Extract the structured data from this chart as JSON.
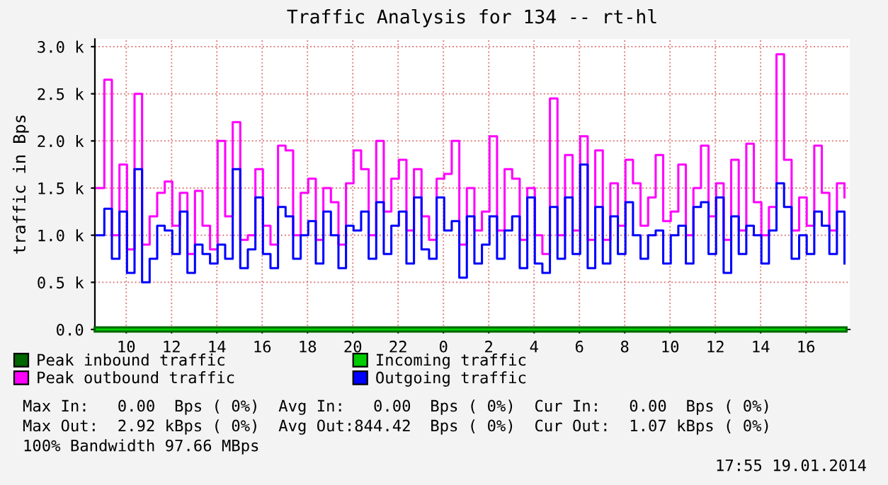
{
  "chart_data": {
    "type": "step",
    "title": "Traffic Analysis for 134 -- rt-hl",
    "ylabel": "traffic in Bps",
    "x": [
      "2014-01-18T08:42",
      "2014-01-18T09:02",
      "2014-01-18T09:22",
      "2014-01-18T09:42",
      "2014-01-18T10:02",
      "2014-01-18T10:22",
      "2014-01-18T10:42",
      "2014-01-18T11:02",
      "2014-01-18T11:22",
      "2014-01-18T11:42",
      "2014-01-18T12:02",
      "2014-01-18T12:22",
      "2014-01-18T12:42",
      "2014-01-18T13:02",
      "2014-01-18T13:22",
      "2014-01-18T13:42",
      "2014-01-18T14:02",
      "2014-01-18T14:22",
      "2014-01-18T14:42",
      "2014-01-18T15:02",
      "2014-01-18T15:22",
      "2014-01-18T15:42",
      "2014-01-18T16:02",
      "2014-01-18T16:22",
      "2014-01-18T16:42",
      "2014-01-18T17:02",
      "2014-01-18T17:22",
      "2014-01-18T17:42",
      "2014-01-18T18:02",
      "2014-01-18T18:22",
      "2014-01-18T18:42",
      "2014-01-18T19:02",
      "2014-01-18T19:22",
      "2014-01-18T19:42",
      "2014-01-18T20:02",
      "2014-01-18T20:22",
      "2014-01-18T20:42",
      "2014-01-18T21:02",
      "2014-01-18T21:22",
      "2014-01-18T21:42",
      "2014-01-18T22:02",
      "2014-01-18T22:22",
      "2014-01-18T22:42",
      "2014-01-18T23:02",
      "2014-01-18T23:22",
      "2014-01-18T23:42",
      "2014-01-19T00:02",
      "2014-01-19T00:22",
      "2014-01-19T00:42",
      "2014-01-19T01:02",
      "2014-01-19T01:22",
      "2014-01-19T01:42",
      "2014-01-19T02:02",
      "2014-01-19T02:22",
      "2014-01-19T02:42",
      "2014-01-19T03:02",
      "2014-01-19T03:22",
      "2014-01-19T03:42",
      "2014-01-19T04:02",
      "2014-01-19T04:22",
      "2014-01-19T04:42",
      "2014-01-19T05:02",
      "2014-01-19T05:22",
      "2014-01-19T05:42",
      "2014-01-19T06:02",
      "2014-01-19T06:22",
      "2014-01-19T06:42",
      "2014-01-19T07:02",
      "2014-01-19T07:22",
      "2014-01-19T07:42",
      "2014-01-19T08:02",
      "2014-01-19T08:22",
      "2014-01-19T08:42",
      "2014-01-19T09:02",
      "2014-01-19T09:22",
      "2014-01-19T09:42",
      "2014-01-19T10:02",
      "2014-01-19T10:22",
      "2014-01-19T10:42",
      "2014-01-19T11:02",
      "2014-01-19T11:22",
      "2014-01-19T11:42",
      "2014-01-19T12:02",
      "2014-01-19T12:22",
      "2014-01-19T12:42",
      "2014-01-19T13:02",
      "2014-01-19T13:22",
      "2014-01-19T13:42",
      "2014-01-19T14:02",
      "2014-01-19T14:22",
      "2014-01-19T14:42",
      "2014-01-19T15:02",
      "2014-01-19T15:22",
      "2014-01-19T15:42",
      "2014-01-19T16:02",
      "2014-01-19T16:22",
      "2014-01-19T16:42",
      "2014-01-19T17:02",
      "2014-01-19T17:22",
      "2014-01-19T17:42"
    ],
    "series": [
      {
        "name": "Peak inbound traffic",
        "color": "#006600",
        "type": "line",
        "x": [
          "2014-01-18T08:42",
          "2014-01-19T17:42"
        ],
        "values": [
          0,
          0
        ]
      },
      {
        "name": "Incoming traffic",
        "color": "#00cc00",
        "type": "line",
        "x": [
          "2014-01-18T08:42",
          "2014-01-19T17:42"
        ],
        "values": [
          0,
          0
        ]
      },
      {
        "name": "Peak outbound traffic",
        "color": "#ff00ff",
        "values": [
          1500,
          2650,
          1000,
          1750,
          850,
          2500,
          900,
          1200,
          1450,
          1570,
          1100,
          1450,
          800,
          1470,
          1100,
          850,
          2000,
          1200,
          2200,
          950,
          1000,
          1700,
          1100,
          900,
          1950,
          1900,
          1000,
          1450,
          1600,
          950,
          1500,
          1350,
          900,
          1550,
          1900,
          1700,
          1000,
          2000,
          1250,
          1600,
          1800,
          1050,
          1700,
          1200,
          950,
          1600,
          1650,
          2000,
          900,
          1500,
          1050,
          1250,
          2050,
          1050,
          1700,
          1600,
          950,
          1500,
          1000,
          800,
          2450,
          1000,
          1850,
          1050,
          2050,
          950,
          1900,
          950,
          1550,
          1100,
          1800,
          1550,
          1100,
          1400,
          1850,
          1150,
          1250,
          1750,
          1000,
          1500,
          1950,
          1200,
          1550,
          950,
          1800,
          1050,
          1970,
          1350,
          1000,
          1300,
          2920,
          1800,
          1050,
          1400,
          1100,
          1950,
          1450,
          1050,
          1550,
          1400
        ]
      },
      {
        "name": "Outgoing traffic",
        "color": "#0000ff",
        "values": [
          1000,
          1280,
          750,
          1250,
          600,
          1700,
          500,
          750,
          1100,
          1050,
          800,
          1250,
          600,
          900,
          800,
          700,
          900,
          750,
          1700,
          650,
          850,
          1400,
          800,
          650,
          1300,
          1200,
          750,
          1000,
          1150,
          700,
          1250,
          1000,
          650,
          1100,
          1050,
          1250,
          750,
          1350,
          800,
          1100,
          1250,
          700,
          1400,
          850,
          750,
          1400,
          1050,
          1150,
          550,
          1200,
          700,
          900,
          1200,
          750,
          1050,
          1200,
          650,
          1400,
          700,
          600,
          1300,
          750,
          1400,
          800,
          1750,
          650,
          1300,
          700,
          1200,
          800,
          1350,
          1000,
          750,
          1000,
          1050,
          700,
          1000,
          1100,
          700,
          1300,
          1350,
          800,
          1400,
          600,
          1200,
          800,
          1100,
          1000,
          700,
          1050,
          1550,
          1300,
          750,
          1000,
          800,
          1250,
          1100,
          800,
          1250,
          700
        ]
      }
    ],
    "xlim": [
      "2014-01-18T08:37",
      "2014-01-19T17:56"
    ],
    "xticks": [
      {
        "value": "2014-01-18T10:00",
        "label": "10"
      },
      {
        "value": "2014-01-18T12:00",
        "label": "12"
      },
      {
        "value": "2014-01-18T14:00",
        "label": "14"
      },
      {
        "value": "2014-01-18T16:00",
        "label": "16"
      },
      {
        "value": "2014-01-18T18:00",
        "label": "18"
      },
      {
        "value": "2014-01-18T20:00",
        "label": "20"
      },
      {
        "value": "2014-01-18T22:00",
        "label": "22"
      },
      {
        "value": "2014-01-19T00:00",
        "label": "0"
      },
      {
        "value": "2014-01-19T02:00",
        "label": "2"
      },
      {
        "value": "2014-01-19T04:00",
        "label": "4"
      },
      {
        "value": "2014-01-19T06:00",
        "label": "6"
      },
      {
        "value": "2014-01-19T08:00",
        "label": "8"
      },
      {
        "value": "2014-01-19T10:00",
        "label": "10"
      },
      {
        "value": "2014-01-19T12:00",
        "label": "12"
      },
      {
        "value": "2014-01-19T14:00",
        "label": "14"
      },
      {
        "value": "2014-01-19T16:00",
        "label": "16"
      }
    ],
    "ylim": [
      0,
      3080
    ],
    "yticks": [
      {
        "value": 0,
        "label": "0.0"
      },
      {
        "value": 500,
        "label": "0.5 k"
      },
      {
        "value": 1000,
        "label": "1.0 k"
      },
      {
        "value": 1500,
        "label": "1.5 k"
      },
      {
        "value": 2000,
        "label": "2.0 k"
      },
      {
        "value": 2500,
        "label": "2.5 k"
      },
      {
        "value": 3000,
        "label": "3.0 k"
      }
    ],
    "grid": true,
    "legend": "bottom",
    "annotations": [
      "Max In:   0.00  Bps ( 0%)  Avg In:   0.00  Bps ( 0%)  Cur In:   0.00  Bps ( 0%)",
      "Max Out:  2.92 kBps ( 0%)  Avg Out:844.42  Bps ( 0%)  Cur Out:  1.07 kBps ( 0%)",
      "100% Bandwidth 97.66 MBps",
      "17:55 19.01.2014"
    ]
  }
}
